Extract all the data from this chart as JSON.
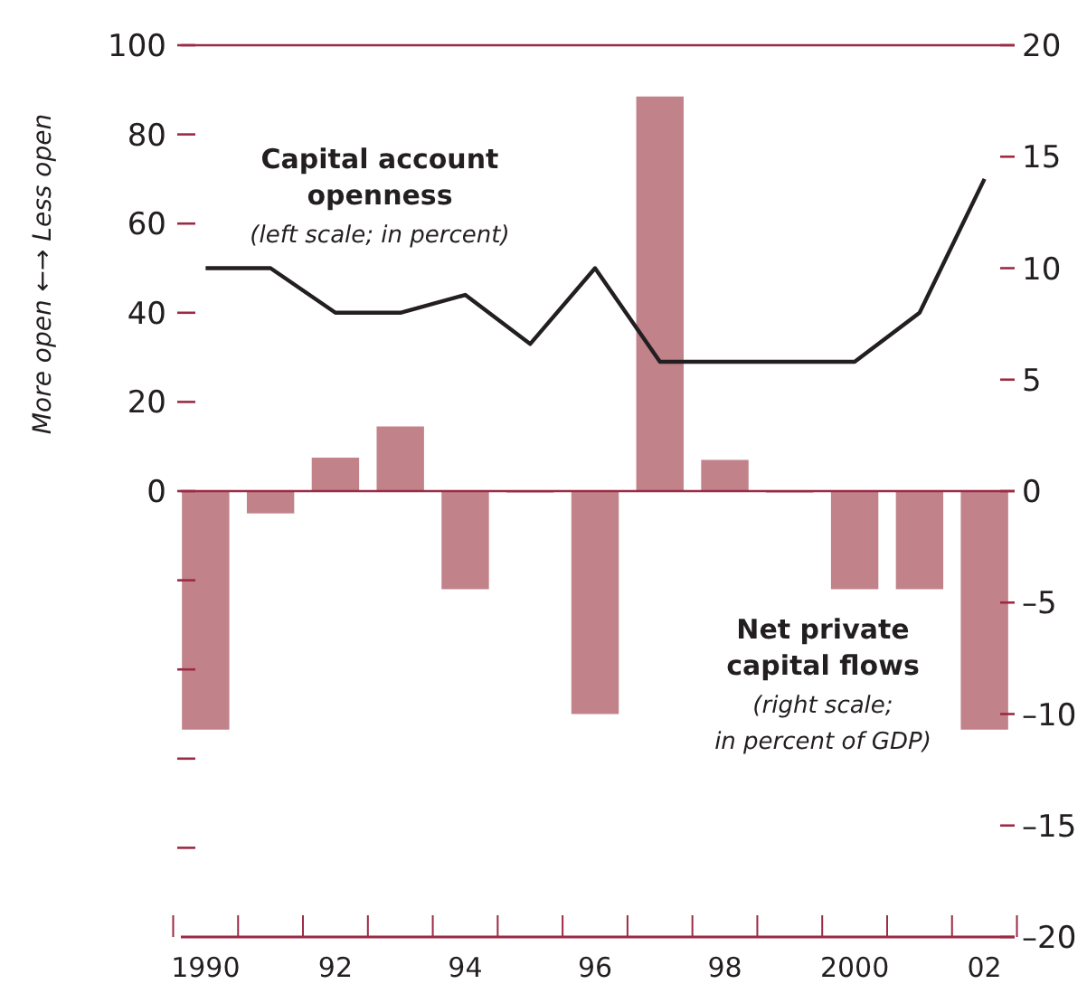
{
  "chart_data": {
    "type": "bar",
    "ylabel": "More open ←→ Less open",
    "categories": [
      "1990",
      null,
      "92",
      null,
      "94",
      null,
      "96",
      null,
      "98",
      null,
      "2000",
      null,
      "02"
    ],
    "series": [
      {
        "name": "Net private capital flows",
        "axis": "y2",
        "color": "#c1828a",
        "values": [
          -10.7,
          -1.0,
          1.5,
          2.9,
          -4.4,
          0,
          -10.0,
          17.7,
          1.4,
          0,
          -4.4,
          -4.4,
          -10.7
        ]
      },
      {
        "name": "Capital account openness",
        "type": "line",
        "axis": "y",
        "color": "#231f20",
        "values": [
          50,
          50,
          40,
          40,
          44,
          33,
          50,
          29,
          29,
          29,
          29,
          40,
          70
        ]
      }
    ],
    "ylim": [
      -100,
      100
    ],
    "yticks": [
      {
        "value": -80,
        "label": null
      },
      {
        "value": -60,
        "label": null
      },
      {
        "value": -40,
        "label": null
      },
      {
        "value": -20,
        "label": null
      },
      0,
      20,
      40,
      60,
      80,
      100
    ],
    "y2lim": [
      -20,
      20
    ],
    "y2ticks": [
      {
        "value": -20,
        "label": "–20"
      },
      {
        "value": -15,
        "label": "–15"
      },
      {
        "value": -10,
        "label": "–10"
      },
      {
        "value": -5,
        "label": "–5"
      },
      0,
      5,
      10,
      15,
      20
    ],
    "ref_lines": [
      {
        "axis": "y",
        "value": 0,
        "color": "#9b2a45"
      },
      {
        "axis": "y",
        "value": 100,
        "color": "#9b2a45"
      }
    ],
    "annotations": [
      "(left scale; in percent)",
      "(right scale; in percent of GDP)"
    ],
    "line_style": "solid",
    "marker": "none",
    "grid": false
  }
}
